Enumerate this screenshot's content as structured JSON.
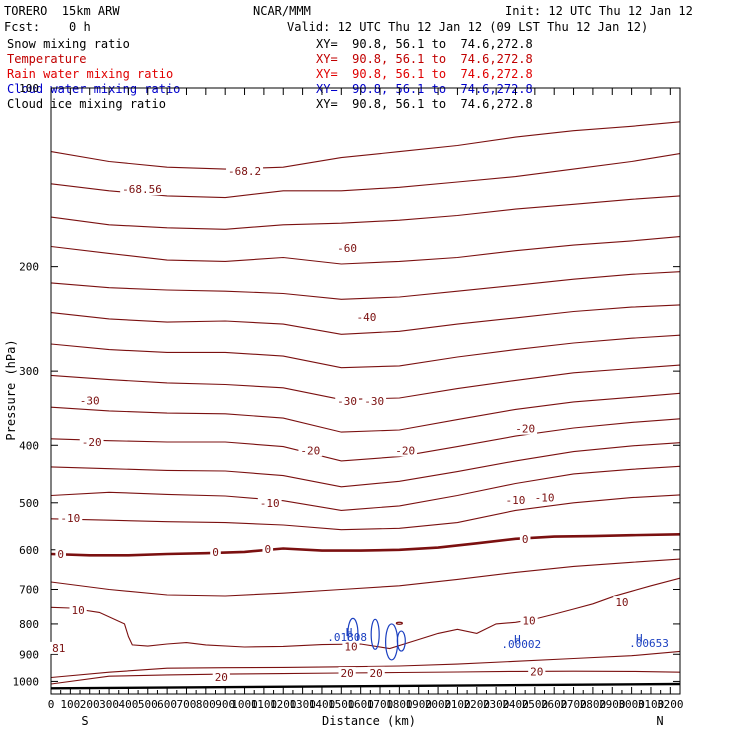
{
  "header": {
    "model": "TORERO  15km ARW",
    "org": "NCAR/MMM",
    "init": "Init: 12 UTC Thu 12 Jan 12",
    "fcst": "Fcst:    0 h",
    "valid": "Valid: 12 UTC Thu 12 Jan 12 (09 LST Thu 12 Jan 12)"
  },
  "fields": [
    {
      "label": "Snow mixing ratio",
      "xy": "XY=  90.8, 56.1 to  74.6,272.8",
      "color": "#000000"
    },
    {
      "label": "Temperature",
      "xy": "XY=  90.8, 56.1 to  74.6,272.8",
      "color": "#c00000"
    },
    {
      "label": "Rain water mixing ratio",
      "xy": "XY=  90.8, 56.1 to  74.6,272.8",
      "color": "#e00000"
    },
    {
      "label": "Cloud water mixing ratio",
      "xy": "XY=  90.8, 56.1 to  74.6,272.8",
      "color": "#0000cc"
    },
    {
      "label": "Cloud ice mixing ratio",
      "xy": "XY=  90.8, 56.1 to  74.6,272.8",
      "color": "#000000"
    }
  ],
  "colors": {
    "temperature": "#7b1010",
    "cloud_water": "#1a3fc0",
    "axis": "#000000",
    "terrain": "#000000"
  },
  "chart_data": {
    "type": "line",
    "title": "",
    "xlabel": "Distance (km)",
    "ylabel": "Pressure (hPa)",
    "xlim": [
      0,
      3250
    ],
    "ylim": [
      1050,
      100
    ],
    "y_scale": "log-pressure",
    "x_ticks": [
      0,
      100,
      200,
      300,
      400,
      500,
      600,
      700,
      800,
      900,
      1000,
      1100,
      1200,
      1300,
      1400,
      1500,
      1600,
      1700,
      1800,
      1900,
      2000,
      2100,
      2200,
      2300,
      2400,
      2500,
      2600,
      2700,
      2800,
      2900,
      3000,
      3100,
      3200
    ],
    "y_ticks": [
      100,
      200,
      300,
      400,
      500,
      600,
      700,
      800,
      900,
      1000
    ],
    "x_end_labels": {
      "left": "S",
      "right": "N"
    },
    "series": [
      {
        "x": [
          0,
          300,
          600,
          900,
          1200,
          1500,
          1800,
          2100,
          2400,
          2700,
          3000,
          3250
        ],
        "y": [
          128,
          133,
          136,
          137,
          136,
          131,
          128,
          125,
          121,
          118,
          116,
          114
        ]
      },
      {
        "x": [
          0,
          300,
          600,
          900,
          1200,
          1500,
          1800,
          2100,
          2400,
          2700,
          3000,
          3250
        ],
        "y": [
          145,
          149,
          152,
          153,
          149,
          149,
          147,
          144,
          141,
          137,
          133,
          129
        ]
      },
      {
        "x": [
          0,
          300,
          600,
          900,
          1200,
          1500,
          1800,
          2100,
          2400,
          2700,
          3000,
          3250
        ],
        "y": [
          165,
          170,
          172,
          173,
          170,
          169,
          167,
          164,
          160,
          157,
          154,
          152
        ]
      },
      {
        "x": [
          0,
          300,
          600,
          900,
          1200,
          1500,
          1800,
          2100,
          2400,
          2700,
          3000,
          3250
        ],
        "y": [
          185,
          190,
          195,
          196,
          193,
          198,
          196,
          193,
          188,
          184,
          181,
          178
        ]
      },
      {
        "x": [
          0,
          300,
          600,
          900,
          1200,
          1500,
          1800,
          2100,
          2400,
          2700,
          3000,
          3250
        ],
        "y": [
          213,
          217,
          219,
          220,
          222,
          227,
          225,
          220,
          215,
          210,
          206,
          204
        ]
      },
      {
        "x": [
          0,
          300,
          600,
          900,
          1200,
          1500,
          1800,
          2100,
          2400,
          2700,
          3000,
          3250
        ],
        "y": [
          239,
          245,
          248,
          247,
          250,
          260,
          257,
          250,
          244,
          238,
          234,
          232
        ]
      },
      {
        "x": [
          0,
          300,
          600,
          900,
          1200,
          1500,
          1800,
          2100,
          2400,
          2700,
          3000,
          3250
        ],
        "y": [
          270,
          276,
          279,
          279,
          283,
          296,
          294,
          284,
          276,
          269,
          264,
          261
        ]
      },
      {
        "x": [
          0,
          300,
          600,
          900,
          1200,
          1500,
          1800,
          2100,
          2400,
          2700,
          3000,
          3250
        ],
        "y": [
          305,
          310,
          314,
          316,
          320,
          335,
          333,
          321,
          311,
          302,
          297,
          293
        ]
      },
      {
        "x": [
          0,
          300,
          600,
          900,
          1200,
          1500,
          1800,
          2100,
          2400,
          2700,
          3000,
          3250
        ],
        "y": [
          345,
          350,
          353,
          354,
          360,
          380,
          377,
          362,
          348,
          338,
          332,
          327
        ]
      },
      {
        "x": [
          0,
          300,
          600,
          900,
          1200,
          1500,
          1800,
          2100,
          2400,
          2700,
          3000,
          3250
        ],
        "y": [
          390,
          393,
          395,
          395,
          402,
          425,
          418,
          402,
          386,
          374,
          366,
          361
        ]
      },
      {
        "x": [
          0,
          300,
          600,
          900,
          1200,
          1500,
          1800,
          2100,
          2400,
          2700,
          3000,
          3250
        ],
        "y": [
          435,
          438,
          441,
          442,
          450,
          470,
          460,
          443,
          425,
          410,
          401,
          396
        ]
      },
      {
        "x": [
          0,
          300,
          600,
          900,
          1200,
          1500,
          1800,
          2100,
          2400,
          2700,
          3000,
          3250
        ],
        "y": [
          486,
          480,
          484,
          487,
          496,
          515,
          506,
          486,
          464,
          447,
          439,
          434
        ]
      },
      {
        "x": [
          0,
          300,
          600,
          900,
          1200,
          1500,
          1800,
          2100,
          2400,
          2700,
          3000,
          3250
        ],
        "y": [
          532,
          535,
          538,
          540,
          545,
          555,
          552,
          540,
          515,
          500,
          490,
          485
        ]
      },
      {
        "x": [
          0,
          200,
          400,
          600,
          800,
          1000,
          1200,
          1400,
          1600,
          1800,
          2000,
          2200,
          2400,
          2600,
          2800,
          3000,
          3250
        ],
        "y": [
          610,
          613,
          613,
          610,
          608,
          605,
          597,
          602,
          602,
          600,
          595,
          585,
          575,
          570,
          569,
          567,
          565
        ]
      },
      {
        "x": [
          0,
          300,
          600,
          900,
          1200,
          1500,
          1800,
          2100,
          2400,
          2700,
          3000,
          3250
        ],
        "y": [
          680,
          700,
          715,
          718,
          710,
          700,
          690,
          673,
          655,
          640,
          630,
          622
        ]
      },
      {
        "x": [
          0,
          100,
          250,
          380,
          400,
          420,
          500,
          600,
          700,
          800,
          1000,
          1200,
          1400,
          1600,
          1750,
          1900,
          2000,
          2100,
          2200,
          2300,
          2400,
          2500,
          2600,
          2700,
          2800,
          2900,
          3000,
          3100,
          3250
        ],
        "y": [
          750,
          752,
          765,
          800,
          840,
          868,
          872,
          865,
          860,
          868,
          875,
          873,
          867,
          865,
          880,
          850,
          830,
          817,
          830,
          800,
          795,
          785,
          770,
          755,
          740,
          720,
          705,
          690,
          670
        ]
      },
      {
        "x": [
          0,
          300,
          600,
          900,
          1200,
          1500,
          1800,
          2100,
          2400,
          2700,
          3000,
          3250
        ],
        "y": [
          985,
          965,
          950,
          948,
          947,
          945,
          942,
          935,
          925,
          915,
          905,
          890
        ]
      },
      {
        "x": [
          0,
          300,
          600,
          900,
          1200,
          1500,
          1800,
          2100,
          2400,
          2700,
          3000,
          3250
        ],
        "y": [
          1010,
          980,
          975,
          972,
          970,
          968,
          966,
          964,
          962,
          961,
          962,
          965
        ]
      }
    ],
    "bold_series_index": 13,
    "contour_labels": [
      {
        "x": 1000,
        "y": 138,
        "text": "-68.2"
      },
      {
        "x": 470,
        "y": 148,
        "text": "-68.56"
      },
      {
        "x": 1530,
        "y": 186,
        "text": "-60"
      },
      {
        "x": 1630,
        "y": 243,
        "text": "-40"
      },
      {
        "x": 200,
        "y": 336,
        "text": "-30"
      },
      {
        "x": 1530,
        "y": 337,
        "text": "-30"
      },
      {
        "x": 1670,
        "y": 337,
        "text": "-30"
      },
      {
        "x": 2450,
        "y": 375,
        "text": "-20"
      },
      {
        "x": 210,
        "y": 395,
        "text": "-20"
      },
      {
        "x": 1340,
        "y": 408,
        "text": "-20"
      },
      {
        "x": 1830,
        "y": 408,
        "text": "-20"
      },
      {
        "x": 1130,
        "y": 500,
        "text": "-10"
      },
      {
        "x": 2400,
        "y": 495,
        "text": "-10"
      },
      {
        "x": 2550,
        "y": 490,
        "text": "-10"
      },
      {
        "x": 100,
        "y": 530,
        "text": "-10"
      },
      {
        "x": 50,
        "y": 610,
        "text": "0"
      },
      {
        "x": 850,
        "y": 605,
        "text": "0"
      },
      {
        "x": 1120,
        "y": 598,
        "text": "0"
      },
      {
        "x": 2450,
        "y": 575,
        "text": "0"
      },
      {
        "x": 140,
        "y": 758,
        "text": "10"
      },
      {
        "x": 2950,
        "y": 735,
        "text": "10"
      },
      {
        "x": 2470,
        "y": 790,
        "text": "10"
      },
      {
        "x": 1550,
        "y": 873,
        "text": "10"
      },
      {
        "x": 40,
        "y": 878,
        "text": "81"
      },
      {
        "x": 1530,
        "y": 968,
        "text": "20"
      },
      {
        "x": 1680,
        "y": 967,
        "text": "20"
      },
      {
        "x": 2510,
        "y": 962,
        "text": "20"
      },
      {
        "x": 880,
        "y": 983,
        "text": "20"
      }
    ],
    "cloud_water": [
      {
        "x": 1540,
        "y": 825,
        "text": "H"
      },
      {
        "x": 1530,
        "y": 842,
        "text": ".01808"
      },
      {
        "x": 2410,
        "y": 848,
        "text": "H"
      },
      {
        "x": 2430,
        "y": 864,
        "text": ".00002"
      },
      {
        "x": 3040,
        "y": 845,
        "text": "H"
      },
      {
        "x": 3090,
        "y": 862,
        "text": ".00653"
      }
    ],
    "terrain": {
      "x": [
        0,
        3250
      ],
      "y": [
        1027,
        1010
      ]
    }
  }
}
